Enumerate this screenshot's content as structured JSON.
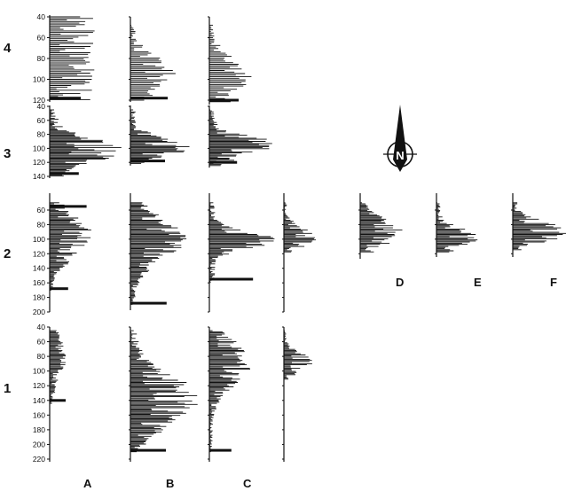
{
  "chart_data": {
    "type": "bar",
    "orientation": "horizontal",
    "layout": "small-multiples grid (rows 1-4, columns A-F)",
    "row_labels": [
      "4",
      "3",
      "2",
      "1"
    ],
    "column_labels": [
      "A",
      "B",
      "C",
      "D",
      "E",
      "F"
    ],
    "north_arrow": "N",
    "panels": [
      {
        "row": "4",
        "col": "A",
        "ticks": [
          40,
          60,
          80,
          100,
          120
        ],
        "range": [
          40,
          120
        ],
        "shape": "uniform",
        "peak": 100,
        "spread": 40,
        "max": 0.85,
        "extra": [
          [
            118,
            0.5
          ]
        ],
        "seed": 1
      },
      {
        "row": "4",
        "col": "B",
        "ticks": [],
        "range": [
          48,
          120
        ],
        "shape": "normal",
        "peak": 95,
        "spread": 16,
        "max": 0.85,
        "extra": [
          [
            118,
            0.7
          ]
        ],
        "seed": 2
      },
      {
        "row": "4",
        "col": "C",
        "ticks": [],
        "range": [
          48,
          122
        ],
        "shape": "normal",
        "peak": 100,
        "spread": 18,
        "max": 0.85,
        "extra": [
          [
            120,
            0.6
          ]
        ],
        "seed": 3
      },
      {
        "row": "3",
        "col": "A",
        "ticks": [
          40,
          60,
          80,
          100,
          120,
          140
        ],
        "range": [
          45,
          140
        ],
        "shape": "normal",
        "peak": 103,
        "spread": 18,
        "max": 1.0,
        "extra": [
          [
            136,
            0.4
          ]
        ],
        "seed": 4
      },
      {
        "row": "3",
        "col": "B",
        "ticks": [],
        "range": [
          45,
          122
        ],
        "shape": "normal",
        "peak": 97,
        "spread": 12,
        "max": 0.95,
        "extra": [
          [
            118,
            0.5
          ]
        ],
        "seed": 5
      },
      {
        "row": "3",
        "col": "C",
        "ticks": [],
        "range": [
          45,
          125
        ],
        "shape": "normal",
        "peak": 96,
        "spread": 14,
        "max": 0.95,
        "extra": [
          [
            120,
            0.4
          ]
        ],
        "seed": 6
      },
      {
        "row": "2",
        "col": "A",
        "ticks": [
          60,
          80,
          100,
          120,
          140,
          160,
          180,
          200
        ],
        "range": [
          50,
          170
        ],
        "shape": "normal",
        "peak": 95,
        "spread": 28,
        "max": 0.9,
        "extra": [
          [
            55,
            0.8
          ],
          [
            168,
            0.4
          ]
        ],
        "seed": 7
      },
      {
        "row": "2",
        "col": "B",
        "ticks": [],
        "range": [
          50,
          190
        ],
        "shape": "normal",
        "peak": 100,
        "spread": 28,
        "max": 0.9,
        "extra": [
          [
            188,
            0.6
          ]
        ],
        "seed": 8
      },
      {
        "row": "2",
        "col": "C",
        "ticks": [],
        "range": [
          50,
          160
        ],
        "shape": "normal",
        "peak": 100,
        "spread": 12,
        "max": 0.95,
        "extra": [
          [
            155,
            0.6
          ]
        ],
        "seed": 9
      },
      {
        "row": "2",
        "col": "C2",
        "ticks": [],
        "range": [
          50,
          118
        ],
        "shape": "normal",
        "peak": 97,
        "spread": 12,
        "max": 0.9,
        "extra": [],
        "seed": 10
      },
      {
        "row": "2",
        "col": "D",
        "ticks": [],
        "range": [
          50,
          118
        ],
        "shape": "normal",
        "peak": 90,
        "spread": 18,
        "max": 0.85,
        "extra": [],
        "seed": 11
      },
      {
        "row": "2",
        "col": "E",
        "ticks": [],
        "range": [
          50,
          118
        ],
        "shape": "normal",
        "peak": 98,
        "spread": 12,
        "max": 0.95,
        "extra": [],
        "seed": 12
      },
      {
        "row": "2",
        "col": "F",
        "ticks": [],
        "range": [
          50,
          115
        ],
        "shape": "normal",
        "peak": 90,
        "spread": 14,
        "max": 1.0,
        "extra": [],
        "seed": 13
      },
      {
        "row": "1",
        "col": "A",
        "ticks": [
          40,
          60,
          80,
          100,
          120,
          140,
          160,
          180,
          200,
          220
        ],
        "range": [
          45,
          145
        ],
        "shape": "normal",
        "peak": 80,
        "spread": 30,
        "max": 0.6,
        "extra": [
          [
            140,
            0.6
          ]
        ],
        "seed": 14
      },
      {
        "row": "1",
        "col": "B",
        "ticks": [],
        "range": [
          45,
          210
        ],
        "shape": "normal",
        "peak": 140,
        "spread": 32,
        "max": 1.0,
        "extra": [
          [
            208,
            0.5
          ]
        ],
        "seed": 15
      },
      {
        "row": "1",
        "col": "C",
        "ticks": [],
        "range": [
          45,
          210
        ],
        "shape": "normal",
        "peak": 90,
        "spread": 28,
        "max": 0.8,
        "extra": [
          [
            208,
            0.4
          ]
        ],
        "seed": 16
      },
      {
        "row": "1",
        "col": "C2",
        "ticks": [],
        "range": [
          45,
          112
        ],
        "shape": "normal",
        "peak": 88,
        "spread": 12,
        "max": 0.9,
        "extra": [],
        "seed": 17
      }
    ]
  }
}
